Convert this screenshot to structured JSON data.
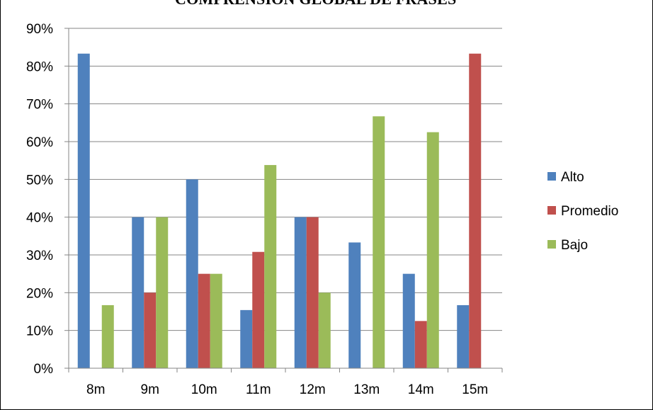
{
  "chart_data": {
    "type": "bar",
    "title": "COMPRENSIÓN GLOBAL DE FRASES",
    "xlabel": "",
    "ylabel": "",
    "categories": [
      "8m",
      "9m",
      "10m",
      "11m",
      "12m",
      "13m",
      "14m",
      "15m"
    ],
    "series": [
      {
        "name": "Alto",
        "color": "#4F81BD",
        "values": [
          0.833,
          0.4,
          0.5,
          0.154,
          0.4,
          0.333,
          0.25,
          0.167
        ]
      },
      {
        "name": "Promedio",
        "color": "#C0504D",
        "values": [
          0.0,
          0.2,
          0.25,
          0.308,
          0.4,
          0.0,
          0.125,
          0.833
        ]
      },
      {
        "name": "Bajo",
        "color": "#9BBB59",
        "values": [
          0.167,
          0.4,
          0.25,
          0.538,
          0.2,
          0.667,
          0.625,
          0.0
        ]
      }
    ],
    "ylim": [
      0,
      0.9
    ],
    "yticks": [
      "0%",
      "10%",
      "20%",
      "30%",
      "40%",
      "50%",
      "60%",
      "70%",
      "80%",
      "90%"
    ],
    "grid": true,
    "legend_position": "right"
  }
}
